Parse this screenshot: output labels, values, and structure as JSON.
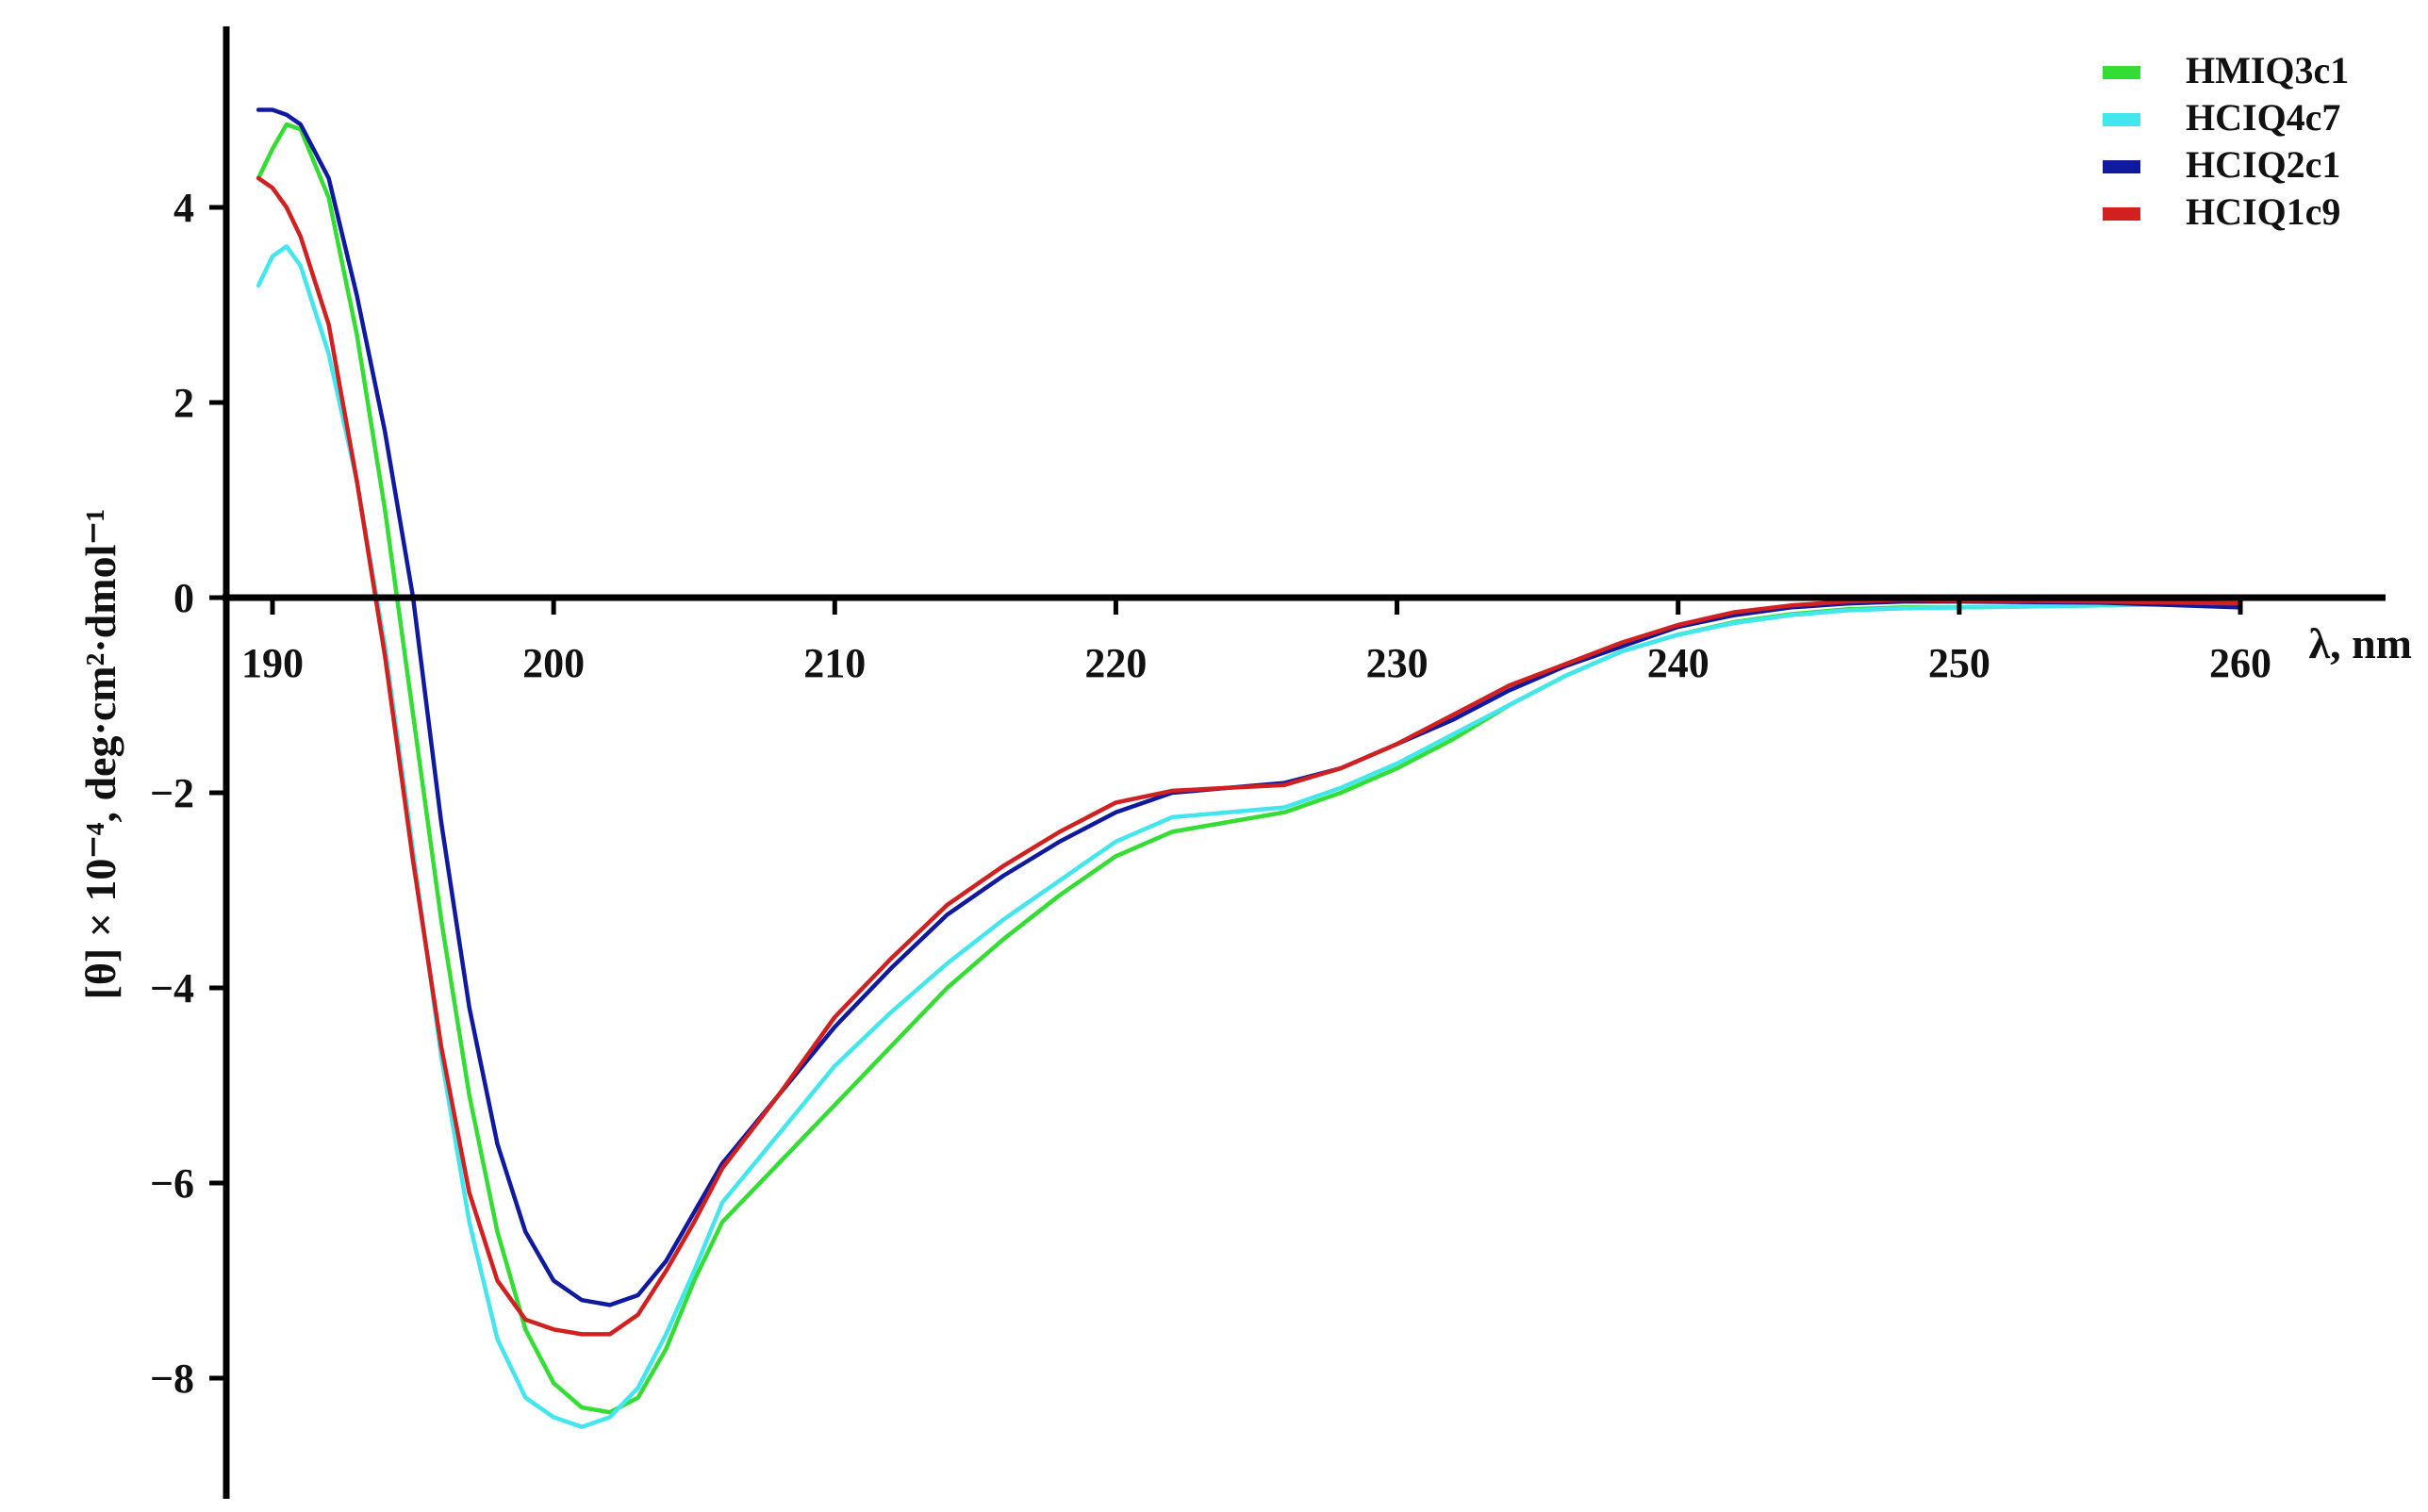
{
  "chart_data": {
    "type": "line",
    "title": "",
    "xlabel": "λ, nm",
    "ylabel": "[θ] × 10⁻⁴, deg·cm²·dmol⁻¹",
    "xlim": [
      188.5,
      265.5
    ],
    "ylim": [
      -9.3,
      5.7
    ],
    "x_ticks": [
      190,
      200,
      210,
      220,
      230,
      240,
      250,
      260
    ],
    "x_tick_labels": [
      "190",
      "200",
      "210",
      "220",
      "230",
      "240",
      "250",
      "260"
    ],
    "y_ticks": [
      4,
      2,
      0,
      -2,
      -4,
      -6,
      -8
    ],
    "y_tick_labels": [
      "4",
      "2",
      "0",
      "−2",
      "−4",
      "−6",
      "−8"
    ],
    "grid": false,
    "legend_position": "top-right",
    "series": [
      {
        "name": "HMIQ3c1",
        "color": "#33dd33",
        "x": [
          189.5,
          190,
          190.5,
          191,
          192,
          193,
          194,
          195,
          196,
          197,
          198,
          199,
          200,
          201,
          202,
          203,
          204,
          205,
          206,
          208,
          210,
          212,
          214,
          216,
          218,
          220,
          222,
          224,
          226,
          228,
          230,
          232,
          234,
          236,
          238,
          240,
          242,
          244,
          246,
          248,
          250,
          255,
          260
        ],
        "y": [
          4.3,
          4.6,
          4.85,
          4.8,
          4.1,
          2.7,
          0.9,
          -1.2,
          -3.3,
          -5.1,
          -6.5,
          -7.5,
          -8.05,
          -8.3,
          -8.35,
          -8.2,
          -7.7,
          -7.0,
          -6.4,
          -5.8,
          -5.2,
          -4.6,
          -4.0,
          -3.5,
          -3.05,
          -2.65,
          -2.4,
          -2.3,
          -2.2,
          -2.0,
          -1.75,
          -1.45,
          -1.1,
          -0.8,
          -0.55,
          -0.38,
          -0.25,
          -0.17,
          -0.12,
          -0.1,
          -0.1,
          -0.08,
          -0.05
        ]
      },
      {
        "name": "HCIQ4c7",
        "color": "#44e6ee",
        "x": [
          189.5,
          190,
          190.5,
          191,
          192,
          193,
          194,
          195,
          196,
          197,
          198,
          199,
          200,
          201,
          202,
          203,
          204,
          205,
          206,
          208,
          210,
          212,
          214,
          216,
          218,
          220,
          222,
          224,
          226,
          228,
          230,
          232,
          234,
          236,
          238,
          240,
          242,
          244,
          246,
          248,
          250,
          255,
          260
        ],
        "y": [
          3.2,
          3.5,
          3.6,
          3.4,
          2.5,
          1.2,
          -0.5,
          -2.6,
          -4.7,
          -6.4,
          -7.6,
          -8.2,
          -8.4,
          -8.5,
          -8.4,
          -8.1,
          -7.55,
          -6.9,
          -6.2,
          -5.5,
          -4.8,
          -4.25,
          -3.75,
          -3.3,
          -2.9,
          -2.5,
          -2.25,
          -2.2,
          -2.15,
          -1.95,
          -1.7,
          -1.4,
          -1.1,
          -0.8,
          -0.55,
          -0.38,
          -0.26,
          -0.18,
          -0.13,
          -0.11,
          -0.1,
          -0.08,
          -0.06
        ]
      },
      {
        "name": "HCIQ2c1",
        "color": "#0f1a9e",
        "x": [
          189.5,
          190,
          190.5,
          191,
          192,
          193,
          194,
          195,
          196,
          197,
          198,
          199,
          200,
          201,
          202,
          203,
          204,
          205,
          206,
          208,
          210,
          212,
          214,
          216,
          218,
          220,
          222,
          224,
          226,
          228,
          230,
          232,
          234,
          236,
          238,
          240,
          242,
          244,
          246,
          248,
          250,
          255,
          260
        ],
        "y": [
          5.0,
          5.0,
          4.95,
          4.85,
          4.3,
          3.1,
          1.7,
          0.0,
          -2.3,
          -4.2,
          -5.6,
          -6.5,
          -7.0,
          -7.2,
          -7.25,
          -7.15,
          -6.8,
          -6.3,
          -5.8,
          -5.1,
          -4.4,
          -3.8,
          -3.25,
          -2.85,
          -2.5,
          -2.2,
          -2.0,
          -1.95,
          -1.9,
          -1.75,
          -1.5,
          -1.25,
          -0.95,
          -0.7,
          -0.5,
          -0.3,
          -0.18,
          -0.1,
          -0.06,
          -0.04,
          -0.04,
          -0.05,
          -0.1
        ]
      },
      {
        "name": "HCIQ1c9",
        "color": "#d02020",
        "x": [
          189.5,
          190,
          190.5,
          191,
          192,
          193,
          194,
          195,
          196,
          197,
          198,
          199,
          200,
          201,
          202,
          203,
          204,
          205,
          206,
          208,
          210,
          212,
          214,
          216,
          218,
          220,
          222,
          224,
          226,
          228,
          230,
          232,
          234,
          236,
          238,
          240,
          242,
          244,
          246,
          248,
          250,
          255,
          260
        ],
        "y": [
          4.3,
          4.2,
          4.0,
          3.7,
          2.8,
          1.2,
          -0.6,
          -2.7,
          -4.6,
          -6.1,
          -7.0,
          -7.4,
          -7.5,
          -7.55,
          -7.55,
          -7.35,
          -6.9,
          -6.4,
          -5.85,
          -5.1,
          -4.3,
          -3.7,
          -3.15,
          -2.75,
          -2.4,
          -2.1,
          -1.98,
          -1.95,
          -1.92,
          -1.75,
          -1.5,
          -1.2,
          -0.9,
          -0.68,
          -0.46,
          -0.28,
          -0.15,
          -0.08,
          -0.04,
          -0.02,
          -0.03,
          -0.04,
          -0.06
        ]
      }
    ]
  }
}
